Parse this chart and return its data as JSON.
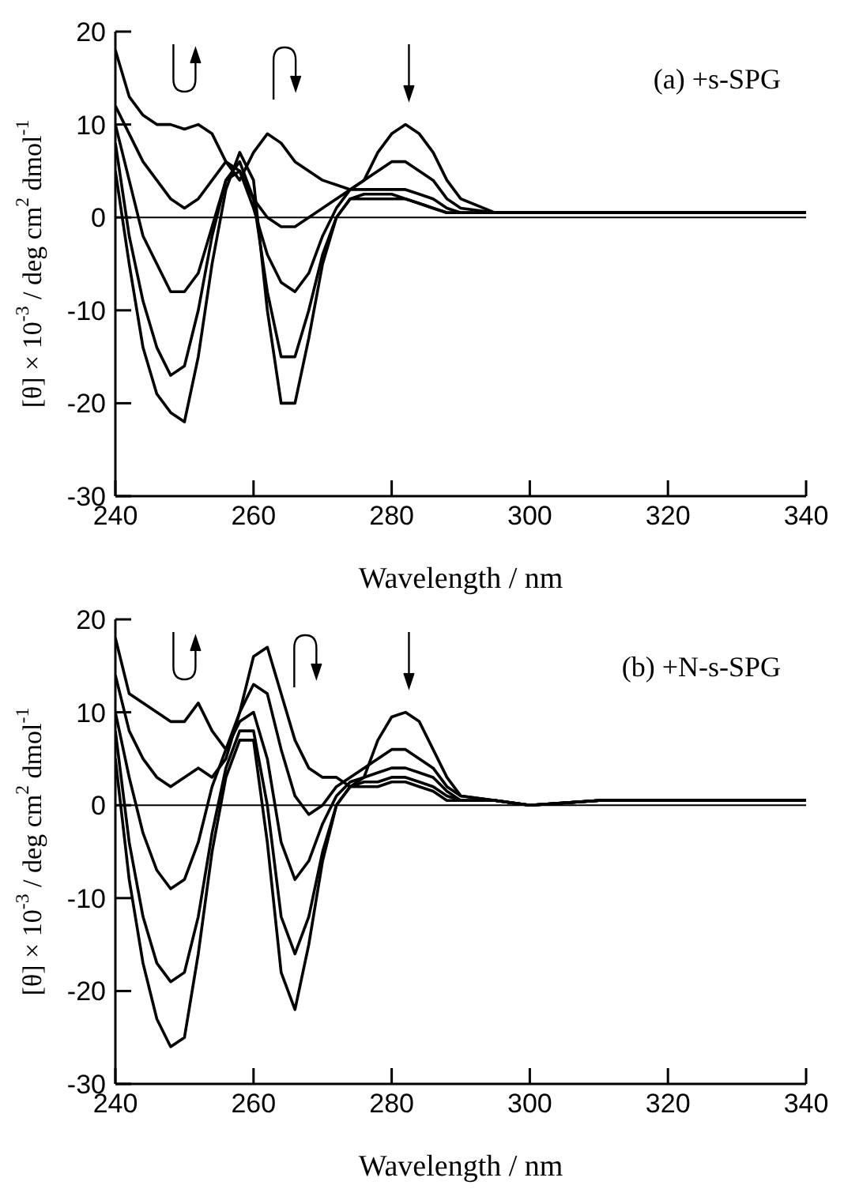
{
  "chart_data": [
    {
      "type": "line",
      "annotations": [
        "(a)  +s-SPG"
      ],
      "xlabel": "Wavelength / nm",
      "ylabel": "[θ] × 10$^{-3}$ / deg cm$^{2}$ dmol$^{-1}$",
      "xlim": [
        240,
        340
      ],
      "xticks": [
        240,
        260,
        280,
        300,
        320,
        340
      ],
      "ylim": [
        -30,
        20
      ],
      "yticks": [
        -30,
        -20,
        -10,
        0,
        10,
        20
      ],
      "marker": "none",
      "ref_lines": [
        {
          "axis": "y",
          "value": 0
        }
      ],
      "x": [
        240,
        242,
        244,
        246,
        248,
        250,
        252,
        254,
        256,
        258,
        260,
        262,
        264,
        266,
        268,
        270,
        272,
        274,
        276,
        278,
        280,
        282,
        284,
        286,
        288,
        290,
        295,
        300,
        310,
        320,
        330,
        340
      ],
      "series": [
        {
          "color": "#000000",
          "values": [
            18,
            13,
            11,
            10,
            10,
            9.5,
            10,
            9,
            6,
            4,
            7,
            9,
            8,
            6,
            5,
            4,
            3.5,
            3,
            4,
            7,
            9,
            10,
            9,
            7,
            4,
            2,
            0.5,
            0.5,
            0.5,
            0.5,
            0.5,
            0.5
          ]
        },
        {
          "color": "#000000",
          "values": [
            12,
            9,
            6,
            4,
            2,
            1,
            2,
            4,
            6,
            5,
            2,
            0,
            -1,
            -1,
            0,
            1,
            2,
            3,
            4,
            5,
            6,
            6,
            5,
            4,
            2,
            1,
            0.5,
            0.5,
            0.5,
            0.5,
            0.5,
            0.5
          ]
        },
        {
          "color": "#000000",
          "values": [
            10,
            4,
            -2,
            -5,
            -8,
            -8,
            -6,
            -1,
            4,
            5,
            1,
            -4,
            -7,
            -8,
            -6,
            -2,
            1,
            3,
            3,
            3,
            3,
            3,
            2.5,
            2,
            1,
            0.5,
            0.5,
            0.5,
            0.5,
            0.5,
            0.5,
            0.5
          ]
        },
        {
          "color": "#000000",
          "values": [
            8,
            -2,
            -9,
            -14,
            -17,
            -16,
            -10,
            -2,
            4,
            6,
            2,
            -8,
            -15,
            -15,
            -10,
            -4,
            0,
            2,
            2,
            2,
            2,
            2,
            1.5,
            1,
            0.5,
            0.5,
            0.5,
            0.5,
            0.5,
            0.5,
            0.5,
            0.5
          ]
        },
        {
          "color": "#000000",
          "values": [
            5,
            -5,
            -14,
            -19,
            -21,
            -22,
            -15,
            -5,
            3,
            7,
            4,
            -10,
            -20,
            -20,
            -13,
            -5,
            0,
            2,
            2.5,
            2.5,
            2.5,
            2,
            1.5,
            1,
            0.5,
            0.5,
            0.5,
            0.5,
            0.5,
            0.5,
            0.5,
            0.5
          ]
        }
      ]
    },
    {
      "type": "line",
      "annotations": [
        "(b)  +N-s-SPG"
      ],
      "xlabel": "Wavelength / nm",
      "ylabel": "[θ] × 10$^{-3}$ / deg cm$^{2}$ dmol$^{-1}$",
      "xlim": [
        240,
        340
      ],
      "xticks": [
        240,
        260,
        280,
        300,
        320,
        340
      ],
      "ylim": [
        -30,
        20
      ],
      "yticks": [
        -30,
        -20,
        -10,
        0,
        10,
        20
      ],
      "marker": "none",
      "ref_lines": [
        {
          "axis": "y",
          "value": 0
        }
      ],
      "x": [
        240,
        242,
        244,
        246,
        248,
        250,
        252,
        254,
        256,
        258,
        260,
        262,
        264,
        266,
        268,
        270,
        272,
        274,
        276,
        278,
        280,
        282,
        284,
        286,
        288,
        290,
        295,
        300,
        310,
        320,
        330,
        340
      ],
      "series": [
        {
          "color": "#000000",
          "values": [
            18,
            12,
            11,
            10,
            9,
            9,
            11,
            8,
            6,
            10,
            16,
            17,
            12,
            7,
            4,
            3,
            3,
            2,
            3,
            7,
            9.5,
            10,
            9,
            6,
            3,
            1,
            0.5,
            0,
            0.5,
            0.5,
            0.5,
            0.5
          ]
        },
        {
          "color": "#000000",
          "values": [
            14,
            8,
            5,
            3,
            2,
            3,
            4,
            3,
            5,
            10,
            13,
            12,
            6,
            1,
            -1,
            0,
            2,
            3,
            4,
            5,
            6,
            6,
            5,
            4,
            2,
            1,
            0.5,
            0,
            0.5,
            0.5,
            0.5,
            0.5
          ]
        },
        {
          "color": "#000000",
          "values": [
            10,
            3,
            -3,
            -7,
            -9,
            -8,
            -4,
            2,
            6,
            9,
            10,
            5,
            -4,
            -8,
            -6,
            -2,
            1,
            2.5,
            3,
            3.5,
            4,
            4,
            3.5,
            3,
            1.5,
            0.5,
            0.5,
            0,
            0.5,
            0.5,
            0.5,
            0.5
          ]
        },
        {
          "color": "#000000",
          "values": [
            8,
            -4,
            -12,
            -17,
            -19,
            -18,
            -12,
            -3,
            4,
            8,
            8,
            0,
            -12,
            -16,
            -12,
            -5,
            0,
            2,
            2.5,
            2.5,
            3,
            3,
            2.5,
            2,
            1,
            0.5,
            0.5,
            0,
            0.5,
            0.5,
            0.5,
            0.5
          ]
        },
        {
          "color": "#000000",
          "values": [
            5,
            -8,
            -17,
            -23,
            -26,
            -25,
            -16,
            -5,
            3,
            7,
            7,
            -4,
            -18,
            -22,
            -15,
            -6,
            0,
            2,
            2,
            2,
            2.5,
            2.5,
            2,
            1.5,
            0.5,
            0.5,
            0.5,
            0,
            0.5,
            0.5,
            0.5,
            0.5
          ]
        }
      ]
    }
  ]
}
